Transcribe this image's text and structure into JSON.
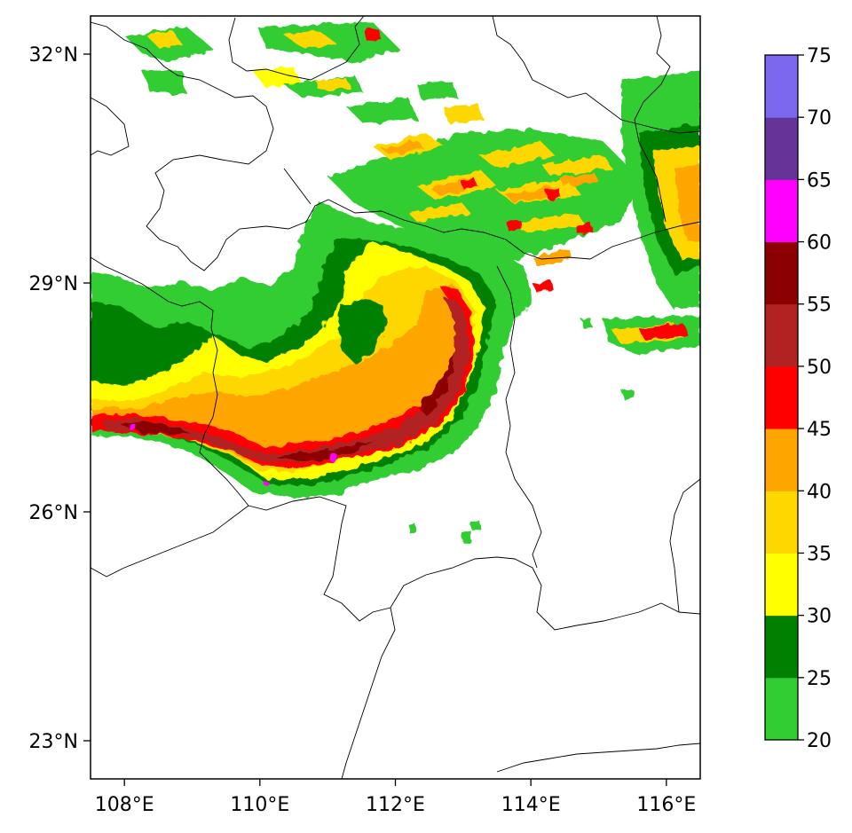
{
  "map": {
    "lon_range": [
      107.5,
      116.5
    ],
    "lat_range": [
      22.5,
      32.5
    ],
    "x_ticks": [
      {
        "lon": 108,
        "label": "108°E"
      },
      {
        "lon": 110,
        "label": "110°E"
      },
      {
        "lon": 112,
        "label": "112°E"
      },
      {
        "lon": 114,
        "label": "114°E"
      },
      {
        "lon": 116,
        "label": "116°E"
      }
    ],
    "y_ticks": [
      {
        "lat": 32,
        "label": "32°N"
      },
      {
        "lat": 29,
        "label": "29°N"
      },
      {
        "lat": 26,
        "label": "26°N"
      },
      {
        "lat": 23,
        "label": "23°N"
      }
    ]
  },
  "colorbar": {
    "levels": [
      {
        "lo": 20,
        "hi": 25,
        "color": "#32cd32"
      },
      {
        "lo": 25,
        "hi": 30,
        "color": "#008000"
      },
      {
        "lo": 30,
        "hi": 35,
        "color": "#ffff00"
      },
      {
        "lo": 35,
        "hi": 40,
        "color": "#ffd700"
      },
      {
        "lo": 40,
        "hi": 45,
        "color": "#ffa500"
      },
      {
        "lo": 45,
        "hi": 50,
        "color": "#ff0000"
      },
      {
        "lo": 50,
        "hi": 55,
        "color": "#b22222"
      },
      {
        "lo": 55,
        "hi": 60,
        "color": "#8b0000"
      },
      {
        "lo": 60,
        "hi": 65,
        "color": "#ff00ff"
      },
      {
        "lo": 65,
        "hi": 70,
        "color": "#663399"
      },
      {
        "lo": 70,
        "hi": 75,
        "color": "#7b68ee"
      }
    ],
    "labels": [
      "20",
      "25",
      "30",
      "35",
      "40",
      "45",
      "50",
      "55",
      "60",
      "65",
      "70",
      "75"
    ]
  }
}
